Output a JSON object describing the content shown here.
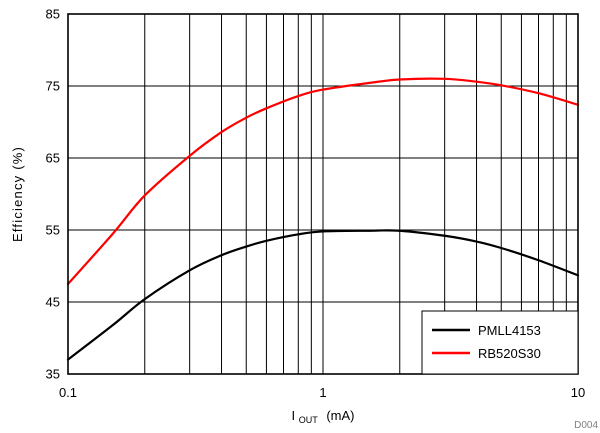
{
  "chart_data": {
    "type": "line",
    "x_scale": "log",
    "grid": true,
    "legend_position": "bottom-right",
    "xlabel": {
      "main": "I",
      "sub": "OUT",
      "rest": "(mA)"
    },
    "ylabel": "Efficiency (%)",
    "xlim": [
      0.1,
      10
    ],
    "ylim": [
      35,
      85
    ],
    "xticks": [
      {
        "value": 0.1,
        "label": "0.1"
      },
      {
        "value": 1,
        "label": "1"
      },
      {
        "value": 10,
        "label": "10"
      }
    ],
    "yticks": [
      {
        "value": 35,
        "label": "35"
      },
      {
        "value": 45,
        "label": "45"
      },
      {
        "value": 55,
        "label": "55"
      },
      {
        "value": 65,
        "label": "65"
      },
      {
        "value": 75,
        "label": "75"
      },
      {
        "value": 85,
        "label": "85"
      }
    ],
    "series": [
      {
        "name": "PMLL4153",
        "color": "#000000",
        "x": [
          0.1,
          0.15,
          0.2,
          0.3,
          0.4,
          0.5,
          0.6,
          0.8,
          1,
          1.5,
          2,
          3,
          4,
          5,
          7,
          10
        ],
        "y": [
          37.0,
          41.8,
          45.4,
          49.4,
          51.5,
          52.7,
          53.5,
          54.4,
          54.8,
          54.9,
          54.9,
          54.2,
          53.4,
          52.5,
          50.8,
          48.7
        ]
      },
      {
        "name": "RB520S30",
        "color": "#ff0000",
        "x": [
          0.1,
          0.15,
          0.2,
          0.3,
          0.4,
          0.5,
          0.6,
          0.8,
          1,
          1.5,
          2,
          3,
          4,
          5,
          7,
          10
        ],
        "y": [
          47.5,
          54.5,
          59.8,
          65.3,
          68.6,
          70.6,
          71.9,
          73.6,
          74.5,
          75.4,
          75.9,
          76.0,
          75.6,
          75.1,
          74.0,
          72.4
        ]
      }
    ]
  },
  "footer": {
    "id": "D004"
  }
}
